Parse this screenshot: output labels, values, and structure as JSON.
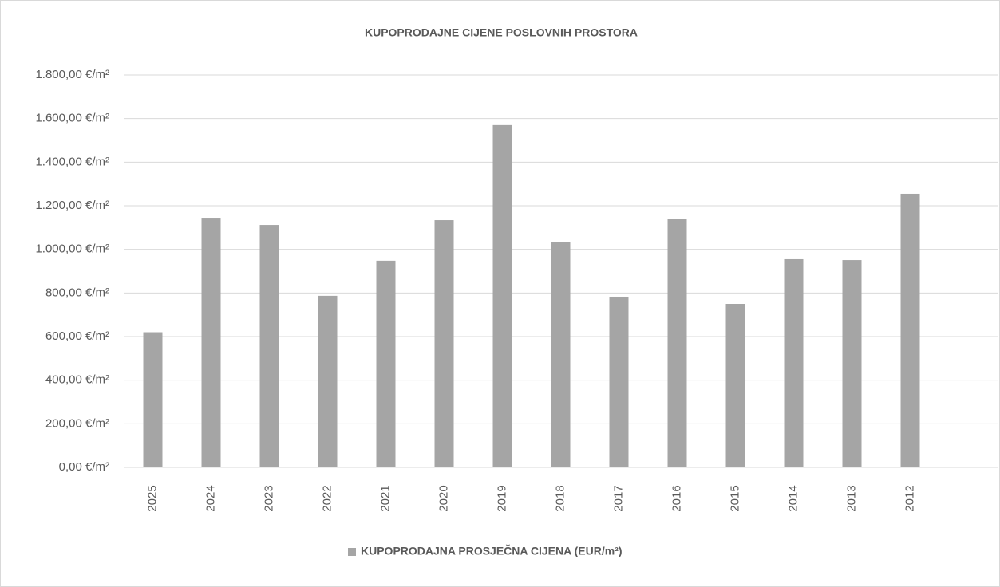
{
  "chart_data": {
    "type": "bar",
    "title": "KUPOPRODAJNE CIJENE POSLOVNIH PROSTORA",
    "categories": [
      "2025",
      "2024",
      "2023",
      "2022",
      "2021",
      "2020",
      "2019",
      "2018",
      "2017",
      "2016",
      "2015",
      "2014",
      "2013",
      "2012"
    ],
    "series": [
      {
        "name": "KUPOPRODAJNA PROSJEČNA CIJENA (EUR/m²)",
        "color": "#a5a5a5",
        "values": [
          620,
          1145,
          1112,
          787,
          948,
          1134,
          1570,
          1035,
          783,
          1138,
          750,
          955,
          951,
          1255
        ]
      }
    ],
    "ylim": [
      0,
      1800
    ],
    "yticks": [
      {
        "value": 0,
        "label": "0,00 €/m²"
      },
      {
        "value": 200,
        "label": "200,00 €/m²"
      },
      {
        "value": 400,
        "label": "400,00 €/m²"
      },
      {
        "value": 600,
        "label": "600,00 €/m²"
      },
      {
        "value": 800,
        "label": "800,00 €/m²"
      },
      {
        "value": 1000,
        "label": "1.000,00 €/m²"
      },
      {
        "value": 1200,
        "label": "1.200,00 €/m²"
      },
      {
        "value": 1400,
        "label": "1.400,00 €/m²"
      },
      {
        "value": 1600,
        "label": "1.600,00 €/m²"
      },
      {
        "value": 1800,
        "label": "1.800,00 €/m²"
      }
    ],
    "grid": true,
    "legend": "bottom"
  }
}
